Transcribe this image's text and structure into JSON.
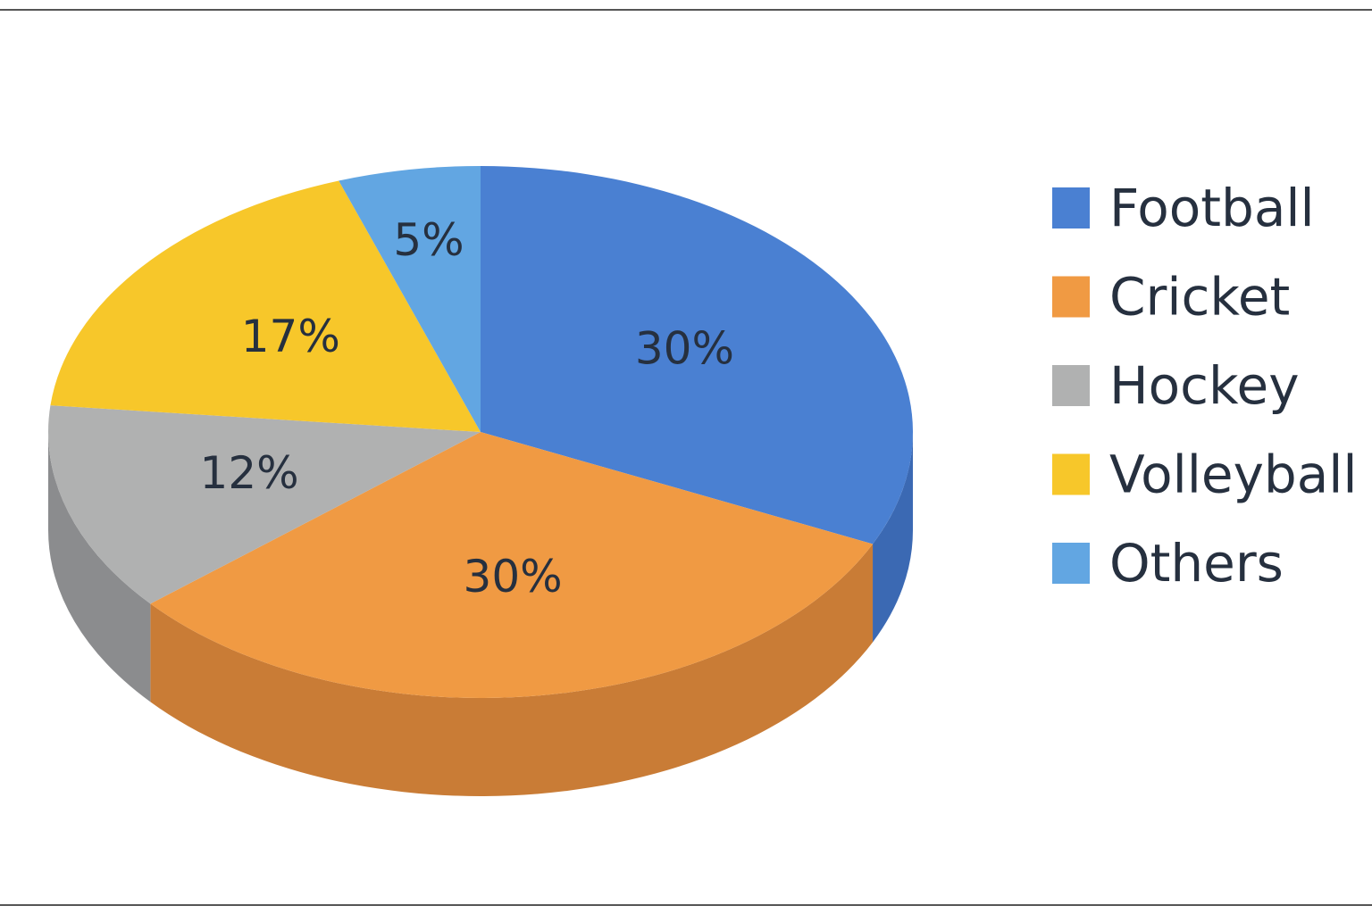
{
  "chart_data": {
    "type": "pie",
    "style": "3d",
    "categories": [
      "Football",
      "Cricket",
      "Hockey",
      "Volleyball",
      "Others"
    ],
    "values": [
      30,
      30,
      12,
      17,
      5
    ],
    "value_labels": [
      "30%",
      "30%",
      "12%",
      "17%",
      "5%"
    ],
    "colors": [
      "#4a80d2",
      "#f09a43",
      "#b0b1b1",
      "#f7c72a",
      "#62a6e2"
    ],
    "side_colors": [
      "#3b69b3",
      "#c97c36",
      "#8b8c8e",
      "#c9a222",
      "#4f88bd"
    ],
    "legend": "right"
  }
}
